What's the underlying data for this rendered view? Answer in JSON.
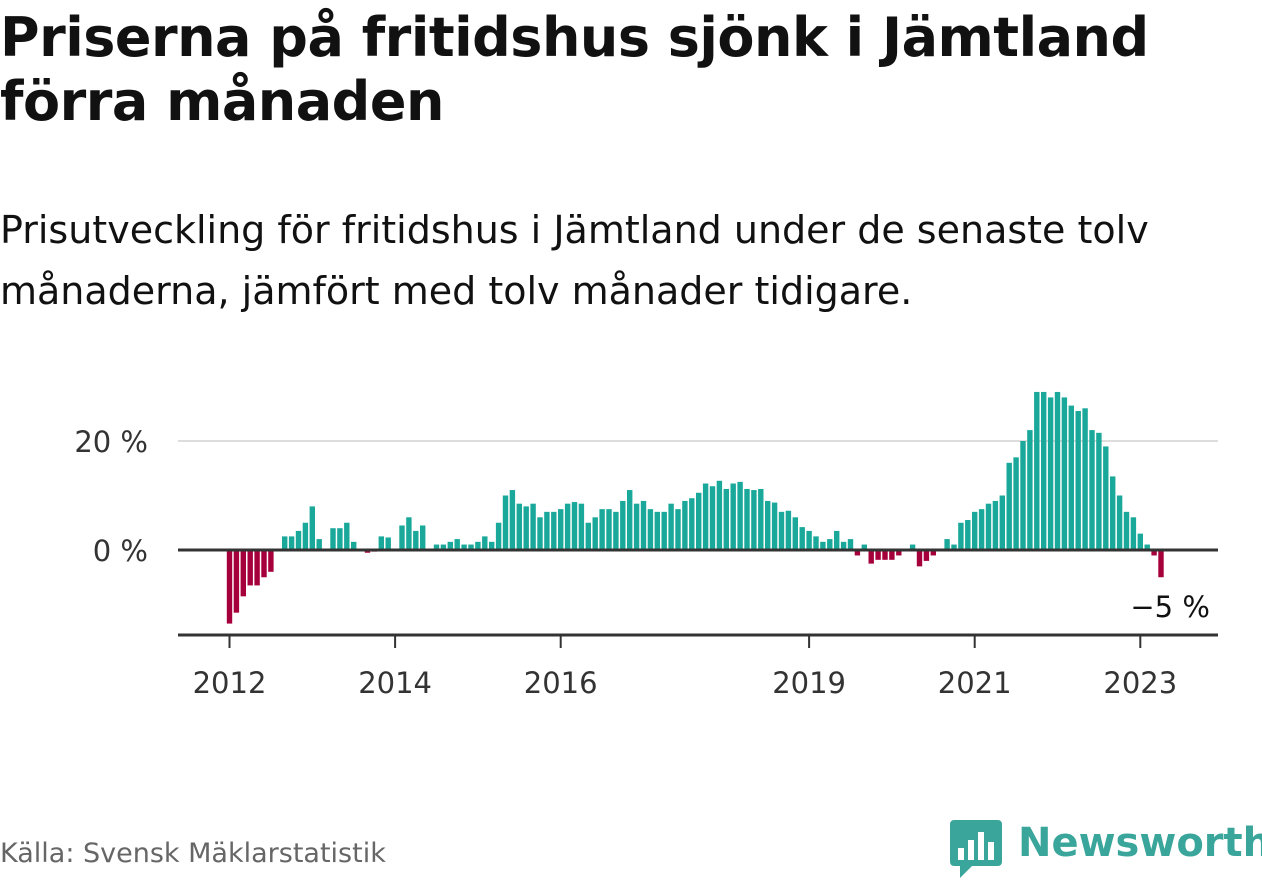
{
  "title": "Priserna på fritidshus sjönk i Jämtland förra månaden",
  "subtitle": "Prisutveckling för fritidshus i Jämtland under de senaste tolv månaderna, jämfört med tolv månader tidigare.",
  "source": "Källa: Svensk Mäklarstatistik",
  "brand": "Newsworthy",
  "colors": {
    "positive": "#1aa89a",
    "negative": "#a6003c",
    "grid": "#dddddd",
    "axis": "#333333",
    "brand": "#3aa69b"
  },
  "chart_data": {
    "type": "bar",
    "title": "Priserna på fritidshus sjönk i Jämtland förra månaden",
    "xlabel": "",
    "ylabel": "",
    "ylim": [
      -15,
      30
    ],
    "grid": true,
    "y_ticks": [
      {
        "value": 0,
        "label": "0 %"
      },
      {
        "value": 20,
        "label": "20 %"
      }
    ],
    "x_ticks": [
      {
        "value": "2012-01",
        "label": "2012"
      },
      {
        "value": "2014-01",
        "label": "2014"
      },
      {
        "value": "2016-01",
        "label": "2016"
      },
      {
        "value": "2019-01",
        "label": "2019"
      },
      {
        "value": "2021-01",
        "label": "2021"
      },
      {
        "value": "2023-01",
        "label": "2023"
      }
    ],
    "annotation": {
      "x": "2023-05",
      "value": -5,
      "label": "−5 %"
    },
    "start": "2012-01",
    "values": [
      -13.5,
      -11.5,
      -8.5,
      -6.5,
      -6.5,
      -5,
      -4,
      0,
      2.5,
      2.5,
      3.5,
      5,
      8,
      2,
      0,
      4,
      4,
      5,
      1.5,
      0,
      -0.5,
      -0.3,
      2.5,
      2.3,
      0,
      4.5,
      6,
      3.5,
      4.5,
      0,
      1,
      1,
      1.5,
      2,
      1,
      1,
      1.5,
      2.5,
      1.5,
      5,
      10,
      11,
      8.5,
      8,
      8.5,
      6,
      7,
      7,
      7.5,
      8.5,
      8.8,
      8.5,
      5,
      6,
      7.5,
      7.5,
      7,
      9,
      11,
      8.5,
      9,
      7.5,
      7,
      7,
      8.5,
      7.5,
      9,
      9.5,
      10.5,
      12.2,
      11.7,
      12.7,
      11.2,
      12.2,
      12.5,
      11.2,
      11,
      11.2,
      9,
      8.7,
      7,
      7.2,
      6,
      4.2,
      3.5,
      2.5,
      1.5,
      2,
      3.5,
      1.5,
      2,
      -1,
      1,
      -2.5,
      -1.8,
      -1.8,
      -1.8,
      -1,
      0,
      1,
      -3,
      -2,
      -1,
      0,
      2,
      1,
      5,
      5.5,
      7,
      7.5,
      8.5,
      9,
      10,
      16,
      17,
      20,
      22,
      29,
      29,
      28,
      29,
      28,
      26.5,
      25.5,
      26,
      22,
      21.5,
      19,
      13.5,
      10,
      7,
      6,
      3,
      1,
      -1,
      -5
    ]
  }
}
